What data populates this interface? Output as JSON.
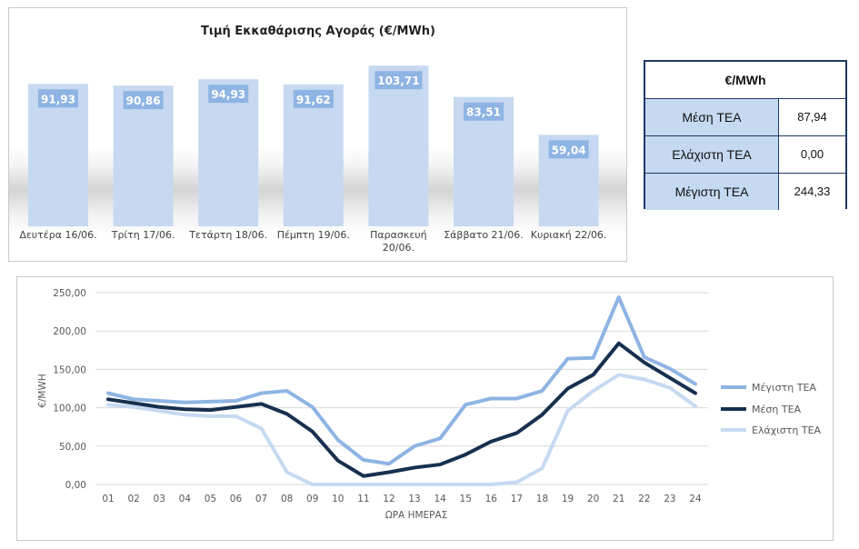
{
  "bar_chart": {
    "chart_data": {
      "type": "bar",
      "title": "Τιμή Εκκαθάρισης Αγοράς (€/MWh)",
      "categories": [
        [
          "Δευτέρα 16/06."
        ],
        [
          "Τρίτη 17/06."
        ],
        [
          "Τετάρτη 18/06."
        ],
        [
          "Πέμπτη 19/06."
        ],
        [
          "Παρασκευή",
          "20/06."
        ],
        [
          "Σάββατο 21/06."
        ],
        [
          "Κυριακή 22/06."
        ]
      ],
      "values": [
        91.93,
        90.86,
        94.93,
        91.62,
        103.71,
        83.51,
        59.04
      ],
      "value_labels": [
        "91,93",
        "90,86",
        "94,93",
        "91,62",
        "103,71",
        "83,51",
        "59,04"
      ],
      "ylim": [
        0,
        115
      ],
      "bar_color": "#c6d9f1",
      "label_color": "#8eb4e3",
      "grid": false
    }
  },
  "stats_table": {
    "header": "€/MWh",
    "rows": [
      {
        "name": "Μέση ΤΕΑ",
        "value": "87,94"
      },
      {
        "name": "Ελάχιστη ΤΕΑ",
        "value": "0,00"
      },
      {
        "name": "Μέγιστη ΤΕΑ",
        "value": "244,33"
      }
    ]
  },
  "line_chart": {
    "chart_data": {
      "type": "line",
      "xlabel": "ΩΡΑ ΗΜΕΡΑΣ",
      "ylabel": "€/MWH",
      "x": [
        "01",
        "02",
        "03",
        "04",
        "05",
        "06",
        "07",
        "08",
        "09",
        "10",
        "11",
        "12",
        "13",
        "14",
        "15",
        "16",
        "17",
        "18",
        "19",
        "20",
        "21",
        "22",
        "23",
        "24"
      ],
      "ylim": [
        0,
        250
      ],
      "yticks": [
        0,
        50,
        100,
        150,
        200,
        250
      ],
      "ytick_labels": [
        "0,00",
        "50,00",
        "100,00",
        "150,00",
        "200,00",
        "250,00"
      ],
      "grid": true,
      "legend_position": "right",
      "series": [
        {
          "name": "Μέγιστη ΤΕΑ",
          "color": "#8eb4e3",
          "values": [
            119,
            111,
            109,
            107,
            108,
            109,
            119,
            122,
            101,
            58,
            32,
            27,
            50,
            60,
            104,
            112,
            112,
            122,
            164,
            165,
            244,
            166,
            151,
            131
          ]
        },
        {
          "name": "Μέση ΤΕΑ",
          "color": "#17304f",
          "values": [
            111,
            106,
            101,
            98,
            97,
            101,
            105,
            92,
            69,
            31,
            11,
            16,
            22,
            26,
            39,
            56,
            67,
            91,
            125,
            143,
            184,
            159,
            139,
            119
          ]
        },
        {
          "name": "Ελάχιστη ΤΕΑ",
          "color": "#c6d9f1",
          "values": [
            104,
            101,
            96,
            91,
            89,
            89,
            73,
            16,
            0,
            0,
            0,
            0,
            0,
            0,
            0,
            0,
            3,
            21,
            96,
            122,
            143,
            137,
            126,
            102
          ]
        }
      ]
    }
  }
}
